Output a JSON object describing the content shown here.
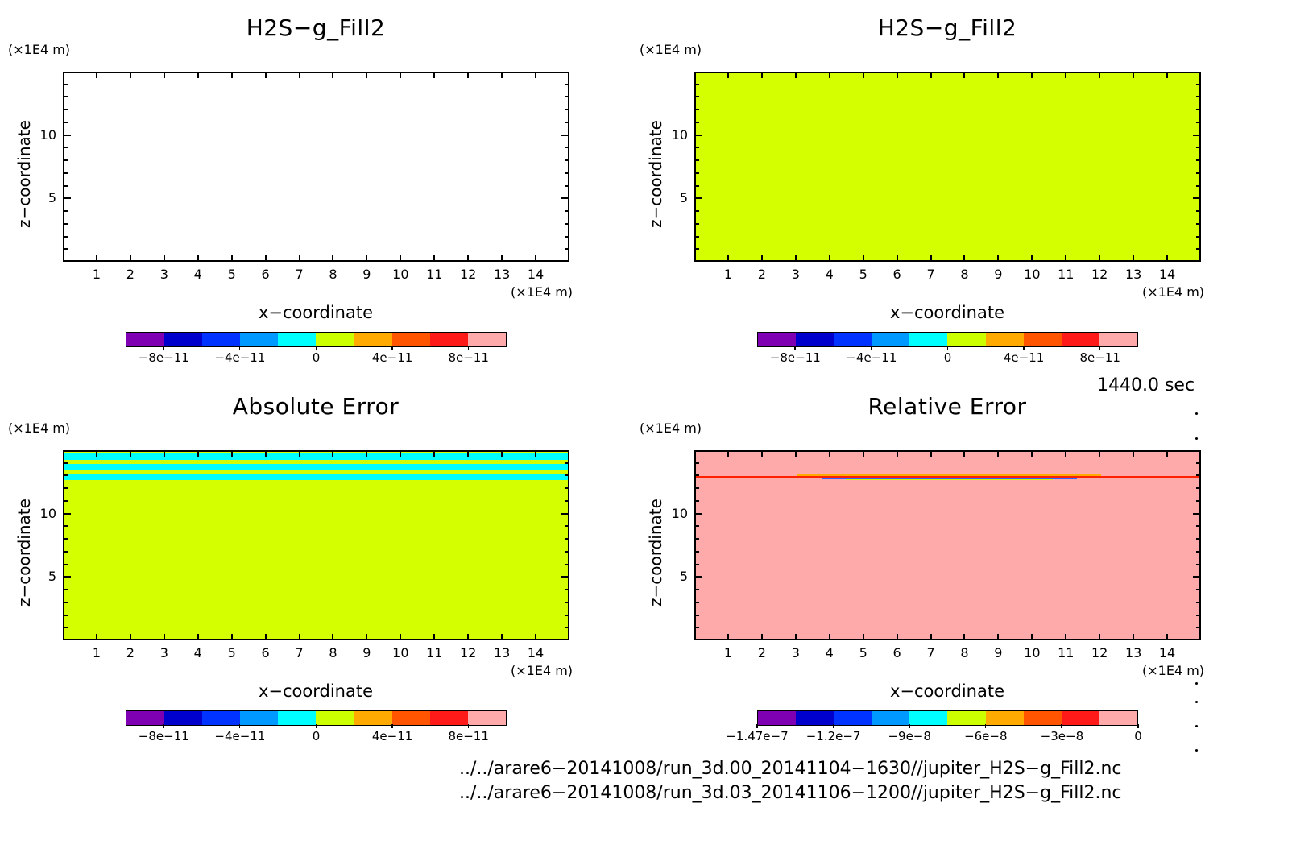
{
  "chart_data": [
    {
      "type": "heatmap",
      "title": "H2S−g_Fill2",
      "xlabel": "x−coordinate",
      "ylabel": "z−coordinate",
      "x_unit": "(×1E4 m)",
      "y_unit": "(×1E4 m)",
      "xlim": [
        0,
        15
      ],
      "ylim": [
        0,
        15
      ],
      "x_ticks": [
        "1",
        "2",
        "3",
        "4",
        "5",
        "6",
        "7",
        "8",
        "9",
        "10",
        "11",
        "12",
        "13",
        "14"
      ],
      "y_ticks": [
        "5",
        "10"
      ],
      "field": "blank",
      "colorbar": {
        "colors": [
          "#7f00b3",
          "#0000cc",
          "#0033ff",
          "#0099ff",
          "#00ffff",
          "#ccff00",
          "#ffaa00",
          "#ff5500",
          "#ff1a1a",
          "#ffaaaa"
        ],
        "tick_labels": [
          "−8e−11",
          "−4e−11",
          "0",
          "4e−11",
          "8e−11"
        ]
      }
    },
    {
      "type": "heatmap",
      "title": "H2S−g_Fill2",
      "xlabel": "x−coordinate",
      "ylabel": "z−coordinate",
      "x_unit": "(×1E4 m)",
      "y_unit": "(×1E4 m)",
      "xlim": [
        0,
        15
      ],
      "ylim": [
        0,
        15
      ],
      "x_ticks": [
        "1",
        "2",
        "3",
        "4",
        "5",
        "6",
        "7",
        "8",
        "9",
        "10",
        "11",
        "12",
        "13",
        "14"
      ],
      "y_ticks": [
        "5",
        "10"
      ],
      "field": "uniform",
      "fill_color": "#d4ff00",
      "colorbar": {
        "colors": [
          "#7f00b3",
          "#0000cc",
          "#0033ff",
          "#0099ff",
          "#00ffff",
          "#ccff00",
          "#ffaa00",
          "#ff5500",
          "#ff1a1a",
          "#ffaaaa"
        ],
        "tick_labels": [
          "−8e−11",
          "−4e−11",
          "0",
          "4e−11",
          "8e−11"
        ]
      }
    },
    {
      "type": "heatmap",
      "title": "Absolute Error",
      "xlabel": "x−coordinate",
      "ylabel": "z−coordinate",
      "x_unit": "(×1E4 m)",
      "y_unit": "(×1E4 m)",
      "xlim": [
        0,
        15
      ],
      "ylim": [
        0,
        15
      ],
      "x_ticks": [
        "1",
        "2",
        "3",
        "4",
        "5",
        "6",
        "7",
        "8",
        "9",
        "10",
        "11",
        "12",
        "13",
        "14"
      ],
      "y_ticks": [
        "5",
        "10"
      ],
      "field": "bands",
      "fill_color": "#d4ff00",
      "band_color": "#00ffff",
      "band_z": [
        14.6,
        13.8,
        13.0
      ],
      "colorbar": {
        "colors": [
          "#7f00b3",
          "#0000cc",
          "#0033ff",
          "#0099ff",
          "#00ffff",
          "#ccff00",
          "#ffaa00",
          "#ff5500",
          "#ff1a1a",
          "#ffaaaa"
        ],
        "tick_labels": [
          "−8e−11",
          "−4e−11",
          "0",
          "4e−11",
          "8e−11"
        ]
      }
    },
    {
      "type": "heatmap",
      "title": "Relative Error",
      "xlabel": "x−coordinate",
      "ylabel": "z−coordinate",
      "x_unit": "(×1E4 m)",
      "y_unit": "(×1E4 m)",
      "xlim": [
        0,
        15
      ],
      "ylim": [
        0,
        15
      ],
      "x_ticks": [
        "1",
        "2",
        "3",
        "4",
        "5",
        "6",
        "7",
        "8",
        "9",
        "10",
        "11",
        "12",
        "13",
        "14"
      ],
      "y_ticks": [
        "5",
        "10"
      ],
      "field": "line",
      "fill_color": "#ffaaaa",
      "line_color": "#ff2200",
      "line_z": 13.0,
      "anomaly_x": [
        3,
        12
      ],
      "colorbar": {
        "colors": [
          "#7f00b3",
          "#0000cc",
          "#0033ff",
          "#0099ff",
          "#00ffff",
          "#ccff00",
          "#ffaa00",
          "#ff5500",
          "#ff1a1a",
          "#ffaaaa"
        ],
        "tick_labels": [
          "−1.47e−7",
          "−1.2e−7",
          "−9e−8",
          "−6e−8",
          "−3e−8",
          "0"
        ]
      }
    }
  ],
  "time_label": "1440.0 sec",
  "footer": {
    "line1": "../../arare6−20141008/run_3d.00_20141104−1630//jupiter_H2S−g_Fill2.nc",
    "line2": "../../arare6−20141008/run_3d.03_20141106−1200//jupiter_H2S−g_Fill2.nc"
  }
}
